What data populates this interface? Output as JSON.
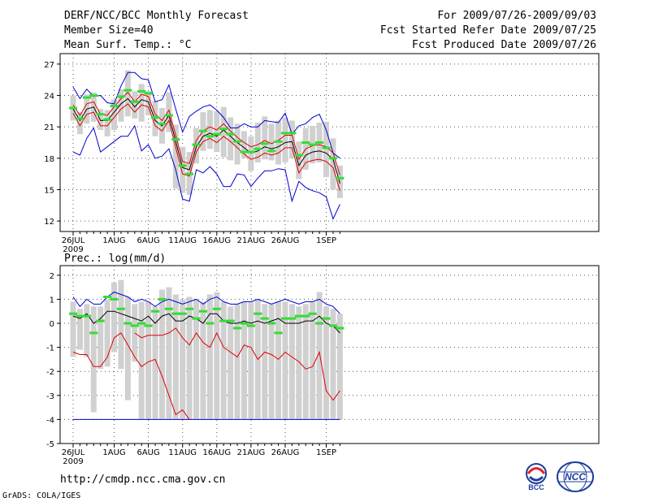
{
  "header": {
    "title": "DERF/NCC/BCC Monthly Forecast",
    "member_size": "Member Size=40",
    "variable": "Mean Surf. Temp.: °C",
    "period": "For 2009/07/26-2009/09/03",
    "refer_date": "Fcst Started Refer Date 2009/07/25",
    "produced_date": "Fcst Produced Date 2009/07/26"
  },
  "footer": {
    "url": "http://cmdp.ncc.cma.gov.cn",
    "credit": "GrADS: COLA/IGES",
    "logo_bcc": "BCC",
    "logo_ncc": "NCC"
  },
  "colors": {
    "box": "#d0d0d0",
    "mean": "#000000",
    "spread_inner": "#e00000",
    "spread_outer": "#0000d0",
    "median": "#33dd33",
    "grid": "#555555"
  },
  "chart_data": [
    {
      "type": "line",
      "title": "Mean Surf. Temp.: °C",
      "ylim": [
        11,
        28
      ],
      "yticks": [
        12,
        15,
        18,
        21,
        24,
        27
      ],
      "xticks": [
        "26JUL",
        "1AUG",
        "6AUG",
        "11AUG",
        "16AUG",
        "21AUG",
        "26AUG",
        "1SEP"
      ],
      "xtick_days": [
        0,
        6,
        11,
        16,
        21,
        26,
        31,
        37
      ],
      "year_label": "2009",
      "days": 40,
      "series": [
        {
          "name": "mean",
          "values": [
            22.7,
            21.6,
            22.7,
            22.9,
            21.6,
            21.6,
            22.4,
            23.2,
            23.7,
            22.9,
            23.6,
            23.4,
            21.6,
            21.1,
            22.1,
            19.6,
            17.1,
            16.9,
            19.1,
            20.1,
            20.4,
            20.1,
            20.7,
            20.1,
            19.5,
            19.0,
            18.5,
            18.7,
            19.1,
            18.9,
            19.1,
            19.5,
            19.6,
            17.3,
            18.3,
            18.6,
            18.7,
            18.5,
            17.9,
            15.6
          ]
        },
        {
          "name": "upper_inner",
          "values": [
            23.1,
            22.1,
            23.2,
            23.4,
            22.2,
            22.1,
            22.9,
            23.7,
            24.3,
            23.4,
            24.1,
            23.9,
            22.2,
            21.6,
            22.6,
            20.2,
            17.7,
            17.5,
            19.7,
            20.6,
            21.0,
            20.7,
            21.3,
            20.6,
            20.0,
            19.5,
            19.1,
            19.3,
            19.7,
            19.4,
            19.7,
            20.2,
            20.2,
            17.9,
            18.9,
            19.2,
            19.3,
            19.1,
            18.5,
            16.4
          ]
        },
        {
          "name": "lower_inner",
          "values": [
            22.3,
            21.1,
            22.2,
            22.4,
            21.1,
            21.1,
            21.9,
            22.7,
            23.2,
            22.4,
            23.1,
            22.9,
            21.1,
            20.6,
            21.6,
            19.0,
            16.5,
            16.3,
            18.6,
            19.6,
            19.9,
            19.5,
            20.1,
            19.6,
            19.0,
            18.4,
            17.9,
            18.1,
            18.5,
            18.3,
            18.5,
            19.0,
            19.0,
            16.6,
            17.6,
            17.8,
            17.9,
            17.7,
            17.1,
            14.9
          ]
        },
        {
          "name": "upper_outer",
          "values": [
            24.8,
            23.7,
            24.6,
            23.9,
            24.0,
            23.3,
            23.2,
            24.9,
            26.2,
            26.2,
            25.6,
            25.5,
            23.4,
            23.6,
            25.0,
            22.7,
            20.5,
            22.0,
            22.5,
            22.9,
            23.1,
            22.6,
            21.9,
            20.9,
            20.9,
            21.3,
            21.0,
            21.0,
            21.6,
            21.5,
            21.4,
            22.3,
            20.3,
            21.1,
            21.3,
            21.9,
            22.2,
            20.7,
            18.5,
            18.0
          ]
        },
        {
          "name": "lower_outer",
          "values": [
            18.6,
            18.3,
            19.9,
            20.9,
            18.6,
            19.1,
            19.6,
            20.1,
            20.1,
            21.1,
            18.7,
            19.3,
            18.0,
            18.2,
            18.9,
            16.9,
            14.1,
            13.9,
            16.9,
            16.6,
            17.2,
            16.5,
            15.3,
            15.3,
            16.5,
            16.4,
            15.3,
            16.1,
            16.8,
            16.8,
            17.0,
            16.9,
            13.9,
            15.8,
            15.2,
            14.9,
            14.7,
            14.3,
            12.2,
            13.6
          ]
        },
        {
          "name": "box_top",
          "values": [
            24.0,
            22.4,
            24.1,
            24.3,
            22.7,
            22.6,
            23.6,
            24.6,
            26.4,
            24.4,
            25.1,
            24.4,
            23.5,
            22.8,
            24.3,
            21.2,
            19.1,
            18.6,
            20.9,
            22.4,
            22.6,
            22.5,
            22.9,
            21.9,
            21.3,
            20.6,
            20.1,
            21.4,
            22.0,
            21.3,
            21.6,
            21.9,
            21.6,
            19.6,
            20.9,
            21.1,
            21.4,
            21.5,
            19.9,
            17.3
          ]
        },
        {
          "name": "box_bottom",
          "values": [
            21.6,
            20.3,
            21.3,
            21.5,
            20.7,
            20.1,
            20.7,
            21.5,
            22.0,
            21.8,
            21.5,
            22.1,
            20.1,
            19.4,
            20.5,
            15.1,
            14.7,
            14.5,
            17.5,
            18.7,
            18.9,
            18.6,
            18.1,
            17.8,
            17.4,
            18.0,
            16.8,
            17.6,
            17.9,
            17.8,
            17.4,
            17.6,
            18.0,
            16.0,
            16.9,
            17.5,
            17.6,
            16.2,
            15.0,
            14.2
          ]
        },
        {
          "name": "median",
          "values": [
            22.8,
            21.8,
            23.8,
            24.0,
            22.2,
            21.7,
            23.0,
            23.9,
            24.5,
            23.4,
            24.4,
            24.2,
            21.9,
            21.3,
            22.1,
            19.8,
            17.3,
            16.5,
            19.3,
            20.6,
            20.1,
            20.3,
            20.8,
            20.3,
            19.6,
            18.6,
            18.6,
            18.9,
            19.4,
            18.7,
            19.6,
            20.4,
            20.4,
            18.3,
            19.5,
            19.3,
            19.5,
            19.0,
            18.0,
            16.1
          ]
        }
      ]
    },
    {
      "type": "line",
      "title": "Prec.: log(mm/d)",
      "ylim": [
        -5,
        2.4
      ],
      "yticks": [
        -5,
        -4,
        -3,
        -2,
        -1,
        0,
        1,
        2
      ],
      "xticks": [
        "26JUL",
        "1AUG",
        "6AUG",
        "11AUG",
        "16AUG",
        "21AUG",
        "26AUG",
        "1SEP"
      ],
      "xtick_days": [
        0,
        6,
        11,
        16,
        21,
        26,
        31,
        37
      ],
      "year_label": "2009",
      "days": 40,
      "series": [
        {
          "name": "mean",
          "values": [
            0.3,
            0.2,
            0.4,
            0.0,
            0.2,
            0.5,
            0.5,
            0.4,
            0.3,
            0.2,
            0.1,
            0.3,
            0.0,
            0.3,
            0.4,
            0.1,
            0.1,
            0.3,
            0.2,
            0.0,
            0.4,
            0.4,
            0.1,
            0.0,
            0.0,
            0.1,
            0.0,
            0.1,
            0.0,
            0.1,
            0.2,
            0.0,
            0.0,
            0.0,
            0.1,
            0.1,
            0.3,
            0.0,
            -0.1,
            -0.4
          ]
        },
        {
          "name": "upper_outer",
          "values": [
            1.1,
            0.7,
            1.0,
            0.8,
            0.8,
            1.1,
            1.3,
            1.2,
            1.1,
            0.9,
            1.0,
            0.9,
            0.7,
            0.9,
            1.0,
            0.9,
            0.8,
            0.9,
            1.0,
            0.8,
            1.0,
            1.1,
            0.9,
            0.8,
            0.8,
            0.9,
            0.9,
            1.0,
            0.9,
            0.8,
            0.9,
            1.0,
            0.9,
            0.8,
            0.9,
            0.9,
            1.0,
            0.8,
            0.7,
            0.4
          ]
        },
        {
          "name": "lower_inner",
          "values": [
            -1.2,
            -1.3,
            -1.3,
            -1.8,
            -1.8,
            -1.4,
            -0.6,
            -0.4,
            -0.9,
            -1.4,
            -1.8,
            -1.6,
            -1.5,
            -2.2,
            -3.0,
            -3.8,
            -3.6,
            -4.0,
            null,
            null,
            null,
            null,
            null,
            null,
            null,
            null,
            null,
            null,
            null,
            null,
            null,
            null,
            null,
            null,
            null,
            null,
            null,
            null,
            null,
            null
          ]
        },
        {
          "name": "lower_inner_2",
          "values": [
            null,
            null,
            null,
            null,
            null,
            null,
            null,
            null,
            null,
            -0.4,
            -0.6,
            -0.5,
            -0.5,
            -0.5,
            -0.4,
            -0.2,
            -0.6,
            -0.9,
            -0.4,
            -0.8,
            -1.0,
            -0.4,
            -1.0,
            -1.2,
            -1.4,
            -0.9,
            -1.0,
            -1.5,
            -1.2,
            -1.3,
            -1.5,
            -1.2,
            -1.4,
            -1.6,
            -1.9,
            -1.8,
            -1.2,
            -2.8,
            -3.2,
            -2.8
          ]
        },
        {
          "name": "lower_outer",
          "values": [
            -4.0,
            -4.0,
            -4.0,
            -4.0,
            -4.0,
            -4.0,
            -4.0,
            -4.0,
            -4.0,
            -4.0,
            -4.0,
            -4.0,
            -4.0,
            -4.0,
            -4.0,
            -4.0,
            -4.0,
            -4.0,
            -4.0,
            -4.0,
            -4.0,
            -4.0,
            -4.0,
            -4.0,
            -4.0,
            -4.0,
            -4.0,
            -4.0,
            -4.0,
            -4.0,
            -4.0,
            -4.0,
            -4.0,
            -4.0,
            -4.0,
            -4.0,
            -4.0,
            -4.0,
            -4.0,
            -4.0
          ]
        },
        {
          "name": "box_top",
          "values": [
            0.9,
            0.6,
            0.8,
            0.7,
            0.7,
            1.0,
            1.7,
            1.8,
            1.1,
            0.8,
            0.9,
            0.9,
            0.7,
            1.4,
            1.5,
            1.2,
            1.0,
            1.1,
            1.0,
            0.9,
            1.2,
            1.3,
            0.9,
            0.7,
            0.8,
            0.9,
            0.9,
            1.0,
            0.8,
            0.8,
            0.9,
            0.9,
            0.8,
            0.7,
            0.8,
            0.9,
            1.3,
            0.7,
            0.6,
            0.4
          ]
        },
        {
          "name": "box_bottom",
          "values": [
            -1.4,
            -1.1,
            -1.4,
            -3.7,
            -1.9,
            -1.8,
            -1.2,
            -1.9,
            -3.2,
            -1.6,
            -4.0,
            -4.0,
            -4.0,
            -4.0,
            -4.0,
            -4.0,
            -4.0,
            -4.0,
            -4.0,
            -4.0,
            -4.0,
            -4.0,
            -4.0,
            -4.0,
            -4.0,
            -4.0,
            -4.0,
            -4.0,
            -4.0,
            -4.0,
            -4.0,
            -4.0,
            -4.0,
            -4.0,
            -4.0,
            -4.0,
            -4.0,
            -4.0,
            -4.0,
            -4.0
          ]
        },
        {
          "name": "median",
          "values": [
            0.4,
            0.3,
            0.3,
            -0.4,
            0.1,
            1.1,
            1.0,
            0.6,
            0.0,
            -0.1,
            0.0,
            -0.1,
            0.5,
            1.0,
            0.6,
            0.4,
            0.4,
            0.6,
            0.2,
            0.5,
            0.0,
            0.6,
            0.1,
            0.1,
            -0.2,
            0.0,
            -0.1,
            0.4,
            0.2,
            0.0,
            -0.4,
            0.2,
            0.2,
            0.3,
            0.3,
            0.4,
            0.0,
            0.2,
            -0.1,
            -0.2
          ]
        }
      ]
    }
  ]
}
